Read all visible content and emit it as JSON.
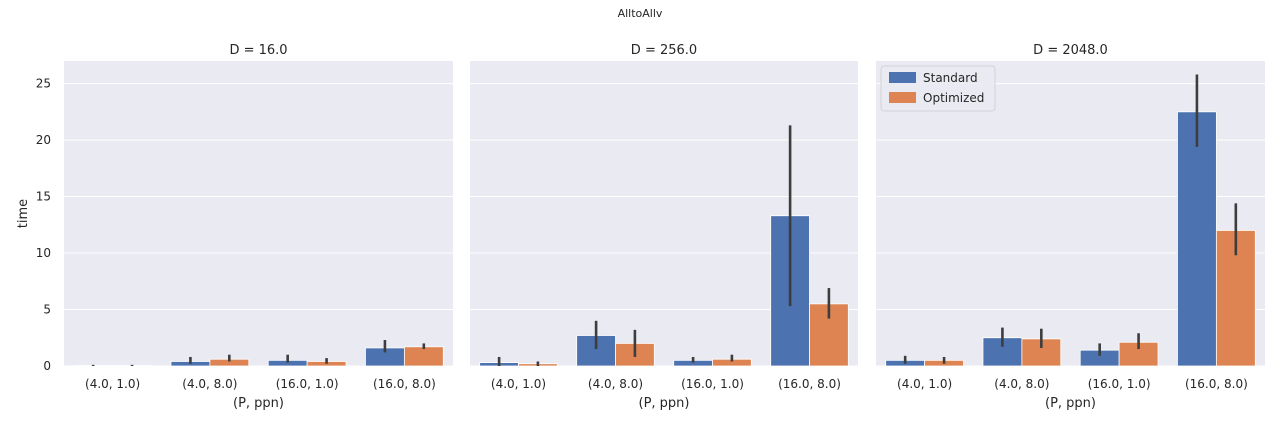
{
  "figure": {
    "suptitle": "AlltoAllv",
    "colors": {
      "Standard": "#4c72b0",
      "Optimized": "#dd8452",
      "panel_bg": "#eaeaf2",
      "grid": "#ffffff",
      "error": "#3d3d3d"
    }
  },
  "chart_data": [
    {
      "type": "bar",
      "title": "D = 16.0",
      "xlabel": "(P, ppn)",
      "ylabel": "time",
      "ylim": [
        0,
        27
      ],
      "yticks": [
        0,
        5,
        10,
        15,
        20,
        25
      ],
      "grid": true,
      "categories": [
        "(4.0, 1.0)",
        "(4.0, 8.0)",
        "(16.0, 1.0)",
        "(16.0, 8.0)"
      ],
      "series": [
        {
          "name": "Standard",
          "values": [
            0.05,
            0.4,
            0.5,
            1.6
          ],
          "err_low": [
            0.0,
            0.2,
            0.3,
            1.2
          ],
          "err_high": [
            0.1,
            0.8,
            1.0,
            2.3
          ]
        },
        {
          "name": "Optimized",
          "values": [
            0.05,
            0.6,
            0.4,
            1.7
          ],
          "err_low": [
            0.0,
            0.4,
            0.2,
            1.5
          ],
          "err_high": [
            0.1,
            1.0,
            0.7,
            2.0
          ]
        }
      ]
    },
    {
      "type": "bar",
      "title": "D = 256.0",
      "xlabel": "(P, ppn)",
      "ylabel": "",
      "ylim": [
        0,
        27
      ],
      "yticks": [
        0,
        5,
        10,
        15,
        20,
        25
      ],
      "grid": true,
      "categories": [
        "(4.0, 1.0)",
        "(4.0, 8.0)",
        "(16.0, 1.0)",
        "(16.0, 8.0)"
      ],
      "series": [
        {
          "name": "Standard",
          "values": [
            0.3,
            2.7,
            0.5,
            13.3
          ],
          "err_low": [
            0.0,
            1.5,
            0.3,
            5.3
          ],
          "err_high": [
            0.8,
            4.0,
            0.8,
            21.3
          ]
        },
        {
          "name": "Optimized",
          "values": [
            0.2,
            2.0,
            0.6,
            5.5
          ],
          "err_low": [
            0.0,
            0.8,
            0.4,
            4.2
          ],
          "err_high": [
            0.4,
            3.2,
            1.0,
            6.9
          ]
        }
      ]
    },
    {
      "type": "bar",
      "title": "D = 2048.0",
      "xlabel": "(P, ppn)",
      "ylabel": "",
      "ylim": [
        0,
        27
      ],
      "yticks": [
        0,
        5,
        10,
        15,
        20,
        25
      ],
      "grid": true,
      "legend": {
        "placement": "top-left",
        "entries": [
          "Standard",
          "Optimized"
        ]
      },
      "categories": [
        "(4.0, 1.0)",
        "(4.0, 8.0)",
        "(16.0, 1.0)",
        "(16.0, 8.0)"
      ],
      "series": [
        {
          "name": "Standard",
          "values": [
            0.5,
            2.5,
            1.4,
            22.5
          ],
          "err_low": [
            0.2,
            1.7,
            0.9,
            19.4
          ],
          "err_high": [
            0.9,
            3.4,
            2.0,
            25.8
          ]
        },
        {
          "name": "Optimized",
          "values": [
            0.5,
            2.4,
            2.1,
            12.0
          ],
          "err_low": [
            0.2,
            1.6,
            1.5,
            9.8
          ],
          "err_high": [
            0.8,
            3.3,
            2.9,
            14.4
          ]
        }
      ]
    }
  ]
}
